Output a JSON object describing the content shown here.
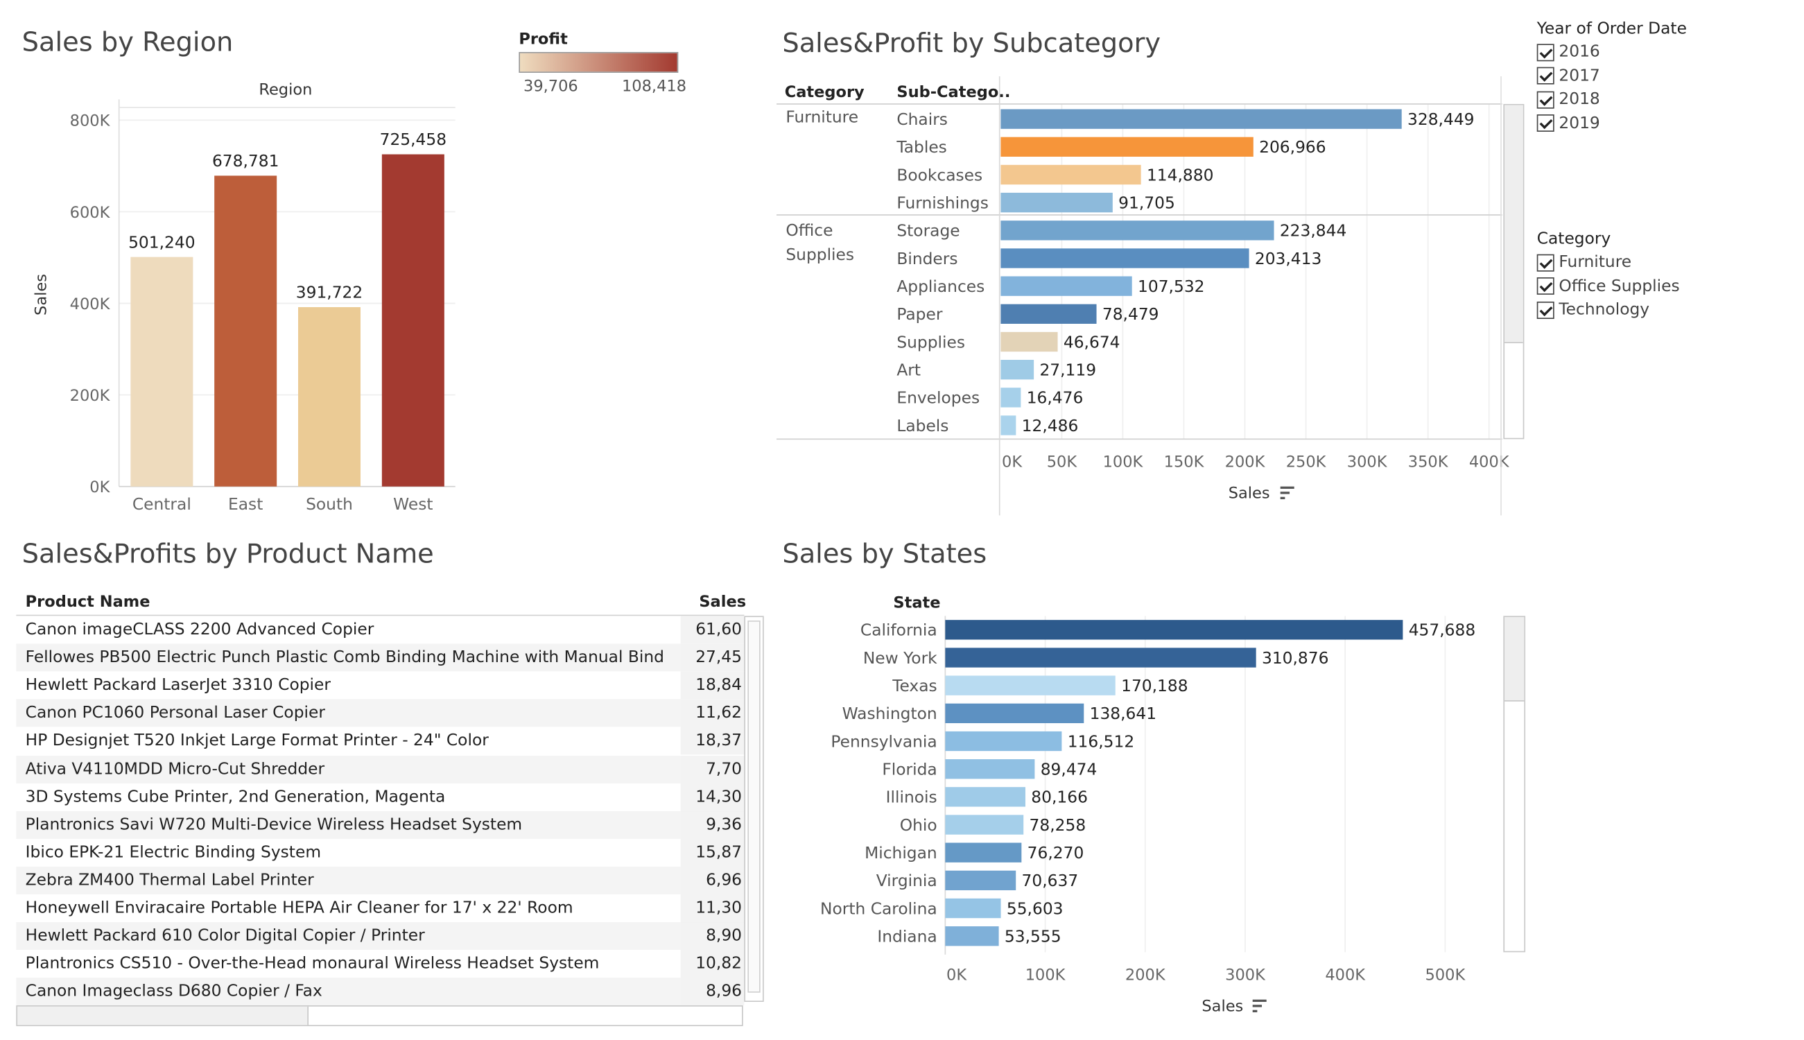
{
  "region_panel": {
    "title": "Sales by Region",
    "column_header": "Region",
    "y_label": "Sales",
    "y_ticks": [
      "800K",
      "600K",
      "400K",
      "200K",
      "0K"
    ],
    "legend": {
      "title": "Profit",
      "min_label": "39,706",
      "max_label": "108,418",
      "color_low": "#efdcbf",
      "color_high": "#a33a30"
    }
  },
  "subcategory_panel": {
    "title": "Sales&Profit by Subcategory",
    "col_category": "Category",
    "col_subcategory": "Sub-Catego..",
    "x_label": "Sales",
    "x_ticks": [
      "0K",
      "50K",
      "100K",
      "150K",
      "200K",
      "250K",
      "300K",
      "350K",
      "400K"
    ]
  },
  "product_panel": {
    "title": "Sales&Profits by Product Name",
    "col_product": "Product Name",
    "col_sales": "Sales",
    "rows": [
      {
        "name": "Canon imageCLASS 2200 Advanced Copier",
        "sales": "61,60"
      },
      {
        "name": "Fellowes PB500 Electric Punch Plastic Comb Binding Machine with Manual Bind",
        "sales": "27,45"
      },
      {
        "name": "Hewlett Packard LaserJet 3310 Copier",
        "sales": "18,84"
      },
      {
        "name": "Canon PC1060 Personal Laser Copier",
        "sales": "11,62"
      },
      {
        "name": "HP Designjet T520 Inkjet Large Format Printer - 24\" Color",
        "sales": "18,37"
      },
      {
        "name": "Ativa V4110MDD Micro-Cut Shredder",
        "sales": "7,70"
      },
      {
        "name": "3D Systems Cube Printer, 2nd Generation, Magenta",
        "sales": "14,30"
      },
      {
        "name": "Plantronics Savi W720 Multi-Device Wireless Headset System",
        "sales": "9,36"
      },
      {
        "name": "Ibico EPK-21 Electric Binding System",
        "sales": "15,87"
      },
      {
        "name": "Zebra ZM400 Thermal Label Printer",
        "sales": "6,96"
      },
      {
        "name": "Honeywell Enviracaire Portable HEPA Air Cleaner for 17' x 22' Room",
        "sales": "11,30"
      },
      {
        "name": "Hewlett Packard 610 Color Digital Copier / Printer",
        "sales": "8,90"
      },
      {
        "name": "Plantronics CS510 - Over-the-Head monaural Wireless Headset System",
        "sales": "10,82"
      },
      {
        "name": "Canon Imageclass D680 Copier / Fax",
        "sales": "8,96"
      }
    ]
  },
  "states_panel": {
    "title": "Sales by States",
    "col_state": "State",
    "x_label": "Sales",
    "x_ticks": [
      "0K",
      "100K",
      "200K",
      "300K",
      "400K",
      "500K"
    ]
  },
  "filters": {
    "year": {
      "title": "Year of Order Date",
      "items": [
        "2016",
        "2017",
        "2018",
        "2019"
      ]
    },
    "category": {
      "title": "Category",
      "items": [
        "Furniture",
        "Office Supplies",
        "Technology"
      ]
    }
  },
  "icons": {
    "sort": "sort-descending-icon",
    "checkbox": "checkbox-checked-icon"
  },
  "chart_data": [
    {
      "type": "bar",
      "title": "Sales by Region",
      "xlabel": "Region",
      "ylabel": "Sales",
      "ylim": [
        0,
        800000
      ],
      "grid": true,
      "categories": [
        "Central",
        "East",
        "South",
        "West"
      ],
      "values": [
        501240,
        678781,
        391722,
        725458
      ],
      "value_labels": [
        "501,240",
        "678,781",
        "391,722",
        "725,458"
      ],
      "colors": [
        "#eedbbd",
        "#bd5e3a",
        "#ebcb95",
        "#a33a30"
      ],
      "color_legend": "Profit"
    },
    {
      "type": "bar",
      "orientation": "horizontal",
      "title": "Sales&Profit by Subcategory",
      "xlabel": "Sales",
      "xlim": [
        0,
        400000
      ],
      "grid": true,
      "groups": [
        {
          "category": "Furniture",
          "subcategories": [
            "Chairs",
            "Tables",
            "Bookcases",
            "Furnishings"
          ]
        },
        {
          "category": "Office Supplies",
          "subcategories": [
            "Storage",
            "Binders",
            "Appliances",
            "Paper",
            "Supplies",
            "Art",
            "Envelopes",
            "Labels"
          ]
        }
      ],
      "categories": [
        "Chairs",
        "Tables",
        "Bookcases",
        "Furnishings",
        "Storage",
        "Binders",
        "Appliances",
        "Paper",
        "Supplies",
        "Art",
        "Envelopes",
        "Labels"
      ],
      "values": [
        328449,
        206966,
        114880,
        91705,
        223844,
        203413,
        107532,
        78479,
        46674,
        27119,
        16476,
        12486
      ],
      "value_labels": [
        "328,449",
        "206,966",
        "114,880",
        "91,705",
        "223,844",
        "203,413",
        "107,532",
        "78,479",
        "46,674",
        "27,119",
        "16,476",
        "12,486"
      ],
      "colors": [
        "#6b9ac4",
        "#f6953a",
        "#f3c78f",
        "#8dbadb",
        "#72a4cd",
        "#5a8ec0",
        "#82b3dc",
        "#4f7fb1",
        "#e3d3b7",
        "#9fcbe6",
        "#a6d0ea",
        "#aad3ec"
      ]
    },
    {
      "type": "bar",
      "orientation": "horizontal",
      "title": "Sales by States",
      "xlabel": "Sales",
      "xlim": [
        0,
        500000
      ],
      "grid": true,
      "categories": [
        "California",
        "New York",
        "Texas",
        "Washington",
        "Pennsylvania",
        "Florida",
        "Illinois",
        "Ohio",
        "Michigan",
        "Virginia",
        "North Carolina",
        "Indiana"
      ],
      "values": [
        457688,
        310876,
        170188,
        138641,
        116512,
        89474,
        80166,
        78258,
        76270,
        70637,
        55603,
        53555
      ],
      "value_labels": [
        "457,688",
        "310,876",
        "170,188",
        "138,641",
        "116,512",
        "89,474",
        "80,166",
        "78,258",
        "76,270",
        "70,637",
        "55,603",
        "53,555"
      ],
      "colors": [
        "#2d5a8c",
        "#356397",
        "#b8dbf1",
        "#5d91c2",
        "#8cbde2",
        "#90c0e3",
        "#9fcbe8",
        "#a5cfea",
        "#6599c6",
        "#71a3cf",
        "#95c4e5",
        "#7fb0d9"
      ]
    }
  ]
}
